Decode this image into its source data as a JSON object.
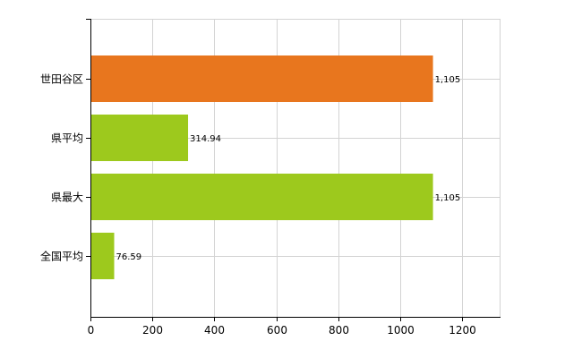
{
  "chart_data": {
    "type": "bar",
    "orientation": "horizontal",
    "categories": [
      "世田谷区",
      "県平均",
      "県最大",
      "全国平均"
    ],
    "values": [
      1105,
      314.94,
      1105,
      76.59
    ],
    "value_labels": [
      "1,105",
      "314.94",
      "1,105",
      "76.59"
    ],
    "bar_colors": [
      "#e8761e",
      "#9dc91d",
      "#9dc91d",
      "#9dc91d"
    ],
    "x_ticks": [
      0,
      200,
      400,
      600,
      800,
      1000,
      1200
    ],
    "xlim": [
      0,
      1320
    ],
    "grid": true,
    "grid_color": "#d3d3d3",
    "axis_color": "#000000"
  }
}
